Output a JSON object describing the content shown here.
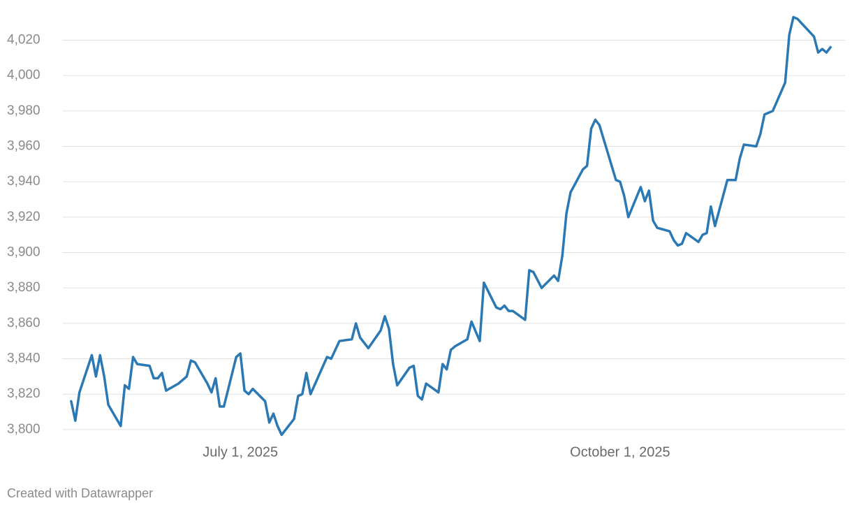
{
  "chart_data": {
    "type": "line",
    "x": [
      "2025-05-21",
      "2025-05-22",
      "2025-05-23",
      "2025-05-26",
      "2025-05-27",
      "2025-05-28",
      "2025-05-29",
      "2025-05-30",
      "2025-06-02",
      "2025-06-03",
      "2025-06-04",
      "2025-06-05",
      "2025-06-06",
      "2025-06-09",
      "2025-06-10",
      "2025-06-11",
      "2025-06-12",
      "2025-06-13",
      "2025-06-16",
      "2025-06-17",
      "2025-06-18",
      "2025-06-19",
      "2025-06-20",
      "2025-06-23",
      "2025-06-24",
      "2025-06-25",
      "2025-06-26",
      "2025-06-27",
      "2025-06-30",
      "2025-07-01",
      "2025-07-02",
      "2025-07-03",
      "2025-07-04",
      "2025-07-07",
      "2025-07-08",
      "2025-07-09",
      "2025-07-10",
      "2025-07-11",
      "2025-07-14",
      "2025-07-15",
      "2025-07-16",
      "2025-07-17",
      "2025-07-18",
      "2025-07-22",
      "2025-07-23",
      "2025-07-25",
      "2025-07-28",
      "2025-07-29",
      "2025-07-30",
      "2025-08-01",
      "2025-08-04",
      "2025-08-05",
      "2025-08-06",
      "2025-08-07",
      "2025-08-08",
      "2025-08-11",
      "2025-08-12",
      "2025-08-13",
      "2025-08-14",
      "2025-08-15",
      "2025-08-18",
      "2025-08-19",
      "2025-08-20",
      "2025-08-21",
      "2025-08-22",
      "2025-08-25",
      "2025-08-26",
      "2025-08-28",
      "2025-08-29",
      "2025-09-01",
      "2025-09-02",
      "2025-09-03",
      "2025-09-04",
      "2025-09-05",
      "2025-09-08",
      "2025-09-09",
      "2025-09-10",
      "2025-09-12",
      "2025-09-15",
      "2025-09-16",
      "2025-09-17",
      "2025-09-18",
      "2025-09-19",
      "2025-09-22",
      "2025-09-23",
      "2025-09-24",
      "2025-09-25",
      "2025-09-26",
      "2025-09-30",
      "2025-10-01",
      "2025-10-02",
      "2025-10-03",
      "2025-10-06",
      "2025-10-07",
      "2025-10-08",
      "2025-10-09",
      "2025-10-10",
      "2025-10-13",
      "2025-10-14",
      "2025-10-15",
      "2025-10-16",
      "2025-10-17",
      "2025-10-20",
      "2025-10-21",
      "2025-10-22",
      "2025-10-23",
      "2025-10-24",
      "2025-10-27",
      "2025-10-29",
      "2025-10-30",
      "2025-10-31",
      "2025-11-03",
      "2025-11-04",
      "2025-11-05",
      "2025-11-07",
      "2025-11-10",
      "2025-11-11",
      "2025-11-12",
      "2025-11-13",
      "2025-11-17",
      "2025-11-18",
      "2025-11-19",
      "2025-11-20",
      "2025-11-21"
    ],
    "series": [
      {
        "color": "#2a78b4",
        "values": [
          3816,
          3805,
          3821,
          3842,
          3830,
          3842,
          3830,
          3814,
          3802,
          3825,
          3823,
          3841,
          3837,
          3836,
          3829,
          3829,
          3832,
          3822,
          3826,
          3828,
          3830,
          3839,
          3838,
          3826,
          3821,
          3829,
          3813,
          3813,
          3841,
          3843,
          3822,
          3820,
          3823,
          3816,
          3804,
          3809,
          3802,
          3797,
          3806,
          3819,
          3820,
          3832,
          3820,
          3841,
          3840,
          3850,
          3851,
          3860,
          3852,
          3846,
          3856,
          3864,
          3857,
          3837,
          3825,
          3835,
          3836,
          3819,
          3817,
          3826,
          3821,
          3837,
          3834,
          3845,
          3847,
          3851,
          3861,
          3850,
          3883,
          3869,
          3868,
          3870,
          3867,
          3867,
          3862,
          3890,
          3889,
          3880,
          3887,
          3884,
          3898,
          3922,
          3934,
          3947,
          3949,
          3970,
          3975,
          3972,
          3941,
          3940,
          3932,
          3920,
          3937,
          3929,
          3935,
          3918,
          3914,
          3912,
          3907,
          3904,
          3905,
          3911,
          3906,
          3910,
          3911,
          3926,
          3915,
          3941,
          3941,
          3953,
          3961,
          3960,
          3967,
          3978,
          3980,
          3996,
          4023,
          4033,
          4032,
          4022,
          4013,
          4015,
          4013,
          4016
        ]
      }
    ],
    "xlim": [
      "2025-05-20",
      "2025-11-24"
    ],
    "xticks": [
      {
        "value": "2025-07-01",
        "label": "July 1, 2025"
      },
      {
        "value": "2025-10-01",
        "label": "October 1, 2025"
      }
    ],
    "ylim": [
      3796,
      4034
    ],
    "yticks": [
      {
        "value": 3800,
        "label": "3,800"
      },
      {
        "value": 3820,
        "label": "3,820"
      },
      {
        "value": 3840,
        "label": "3,840"
      },
      {
        "value": 3860,
        "label": "3,860"
      },
      {
        "value": 3880,
        "label": "3,880"
      },
      {
        "value": 3900,
        "label": "3,900"
      },
      {
        "value": 3920,
        "label": "3,920"
      },
      {
        "value": 3940,
        "label": "3,940"
      },
      {
        "value": 3960,
        "label": "3,960"
      },
      {
        "value": 3980,
        "label": "3,980"
      },
      {
        "value": 4000,
        "label": "4,000"
      },
      {
        "value": 4020,
        "label": "4,020"
      }
    ],
    "grid": true,
    "footer": "Created with Datawrapper"
  }
}
